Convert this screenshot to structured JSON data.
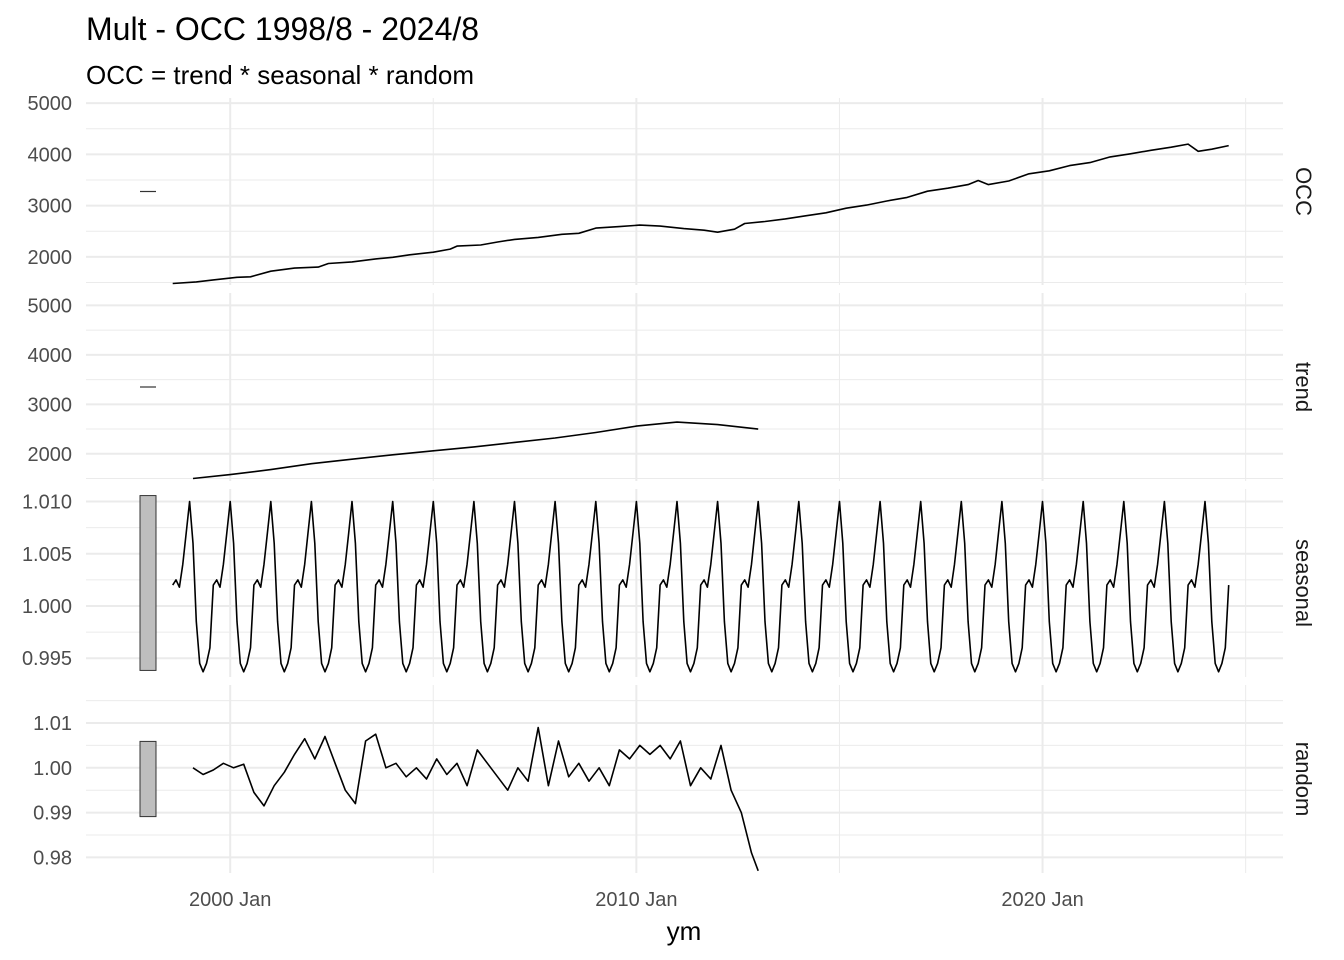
{
  "title": "Mult - OCC 1998/8 - 2024/8",
  "subtitle": "OCC = trend * seasonal * random",
  "colors": {
    "line": "#000000",
    "grid": "#ebebeb",
    "scale_bar": "#bebebe",
    "axis_text": "#4d4d4d",
    "title": "#000000"
  },
  "chart_data": {
    "type": "line",
    "title": "Mult - OCC 1998/8 - 2024/8",
    "subtitle": "OCC = trend * seasonal * random",
    "xlabel": "ym",
    "x_range": [
      "1998-08",
      "2024-08"
    ],
    "x_ticks": [
      "2000 Jan",
      "2010 Jan",
      "2020 Jan"
    ],
    "grid": true,
    "panels": [
      {
        "name": "OCC",
        "ylim": [
          1450,
          5100
        ],
        "y_ticks": [
          2000,
          3000,
          4000,
          5000
        ],
        "y_tick_labels": [
          "2000",
          "3000",
          "4000",
          "5000"
        ],
        "series": [
          {
            "x": "1998-08",
            "y": 1480
          },
          {
            "x": "1999-03",
            "y": 1510
          },
          {
            "x": "1999-08",
            "y": 1550
          },
          {
            "x": "2000-03",
            "y": 1600
          },
          {
            "x": "2000-07",
            "y": 1610
          },
          {
            "x": "2001-01",
            "y": 1720
          },
          {
            "x": "2001-08",
            "y": 1780
          },
          {
            "x": "2002-03",
            "y": 1800
          },
          {
            "x": "2002-06",
            "y": 1870
          },
          {
            "x": "2003-01",
            "y": 1900
          },
          {
            "x": "2003-08",
            "y": 1960
          },
          {
            "x": "2004-01",
            "y": 1990
          },
          {
            "x": "2004-06",
            "y": 2040
          },
          {
            "x": "2005-01",
            "y": 2090
          },
          {
            "x": "2005-06",
            "y": 2150
          },
          {
            "x": "2005-08",
            "y": 2210
          },
          {
            "x": "2006-03",
            "y": 2230
          },
          {
            "x": "2006-08",
            "y": 2290
          },
          {
            "x": "2007-01",
            "y": 2340
          },
          {
            "x": "2007-08",
            "y": 2380
          },
          {
            "x": "2008-03",
            "y": 2440
          },
          {
            "x": "2008-08",
            "y": 2460
          },
          {
            "x": "2009-01",
            "y": 2560
          },
          {
            "x": "2009-08",
            "y": 2590
          },
          {
            "x": "2010-02",
            "y": 2620
          },
          {
            "x": "2010-08",
            "y": 2600
          },
          {
            "x": "2011-03",
            "y": 2550
          },
          {
            "x": "2011-09",
            "y": 2520
          },
          {
            "x": "2012-01",
            "y": 2480
          },
          {
            "x": "2012-06",
            "y": 2540
          },
          {
            "x": "2012-09",
            "y": 2650
          },
          {
            "x": "2013-03",
            "y": 2690
          },
          {
            "x": "2013-09",
            "y": 2740
          },
          {
            "x": "2014-03",
            "y": 2800
          },
          {
            "x": "2014-09",
            "y": 2860
          },
          {
            "x": "2015-03",
            "y": 2950
          },
          {
            "x": "2015-09",
            "y": 3010
          },
          {
            "x": "2016-03",
            "y": 3090
          },
          {
            "x": "2016-09",
            "y": 3160
          },
          {
            "x": "2017-03",
            "y": 3280
          },
          {
            "x": "2017-09",
            "y": 3340
          },
          {
            "x": "2018-03",
            "y": 3410
          },
          {
            "x": "2018-06",
            "y": 3490
          },
          {
            "x": "2018-09",
            "y": 3410
          },
          {
            "x": "2019-03",
            "y": 3480
          },
          {
            "x": "2019-09",
            "y": 3620
          },
          {
            "x": "2020-03",
            "y": 3680
          },
          {
            "x": "2020-09",
            "y": 3780
          },
          {
            "x": "2021-03",
            "y": 3840
          },
          {
            "x": "2021-09",
            "y": 3950
          },
          {
            "x": "2022-03",
            "y": 4010
          },
          {
            "x": "2022-09",
            "y": 4080
          },
          {
            "x": "2023-03",
            "y": 4140
          },
          {
            "x": "2023-08",
            "y": 4200
          },
          {
            "x": "2023-11",
            "y": 4060
          },
          {
            "x": "2024-03",
            "y": 4100
          },
          {
            "x": "2024-08",
            "y": 4170
          }
        ]
      },
      {
        "name": "trend",
        "ylim": [
          1450,
          5250
        ],
        "y_ticks": [
          2000,
          3000,
          4000,
          5000
        ],
        "y_tick_labels": [
          "2000",
          "3000",
          "4000",
          "5000"
        ],
        "series": [
          {
            "x": "1999-02",
            "y": 1500
          },
          {
            "x": "2000-01",
            "y": 1580
          },
          {
            "x": "2001-01",
            "y": 1680
          },
          {
            "x": "2002-01",
            "y": 1800
          },
          {
            "x": "2003-01",
            "y": 1890
          },
          {
            "x": "2004-01",
            "y": 1980
          },
          {
            "x": "2005-01",
            "y": 2060
          },
          {
            "x": "2006-01",
            "y": 2140
          },
          {
            "x": "2007-01",
            "y": 2230
          },
          {
            "x": "2008-01",
            "y": 2320
          },
          {
            "x": "2009-01",
            "y": 2430
          },
          {
            "x": "2010-01",
            "y": 2560
          },
          {
            "x": "2011-01",
            "y": 2640
          },
          {
            "x": "2012-01",
            "y": 2590
          },
          {
            "x": "2013-01",
            "y": 2500
          }
        ]
      },
      {
        "name": "seasonal",
        "ylim": [
          0.9932,
          1.0112
        ],
        "y_ticks": [
          0.995,
          1.0,
          1.005,
          1.01
        ],
        "y_tick_labels": [
          "0.995",
          "1.000",
          "1.005",
          "1.010"
        ],
        "start": "1998-08",
        "end": "2024-08",
        "period_values_by_month": {
          "Jan": 1.01,
          "Feb": 1.006,
          "Mar": 0.9985,
          "Apr": 0.9945,
          "May": 0.9937,
          "Jun": 0.9945,
          "Jul": 0.996,
          "Aug": 1.002,
          "Sep": 1.0025,
          "Oct": 1.0018,
          "Nov": 1.004,
          "Dec": 1.007
        }
      },
      {
        "name": "random",
        "ylim": [
          0.9765,
          1.0185
        ],
        "y_ticks": [
          0.98,
          0.99,
          1.0,
          1.01
        ],
        "y_tick_labels": [
          "0.98",
          "0.99",
          "1.00",
          "1.01"
        ],
        "series": [
          {
            "x": "1999-02",
            "y": 1.0
          },
          {
            "x": "1999-05",
            "y": 0.9985
          },
          {
            "x": "1999-08",
            "y": 0.9995
          },
          {
            "x": "1999-11",
            "y": 1.001
          },
          {
            "x": "2000-02",
            "y": 1.0
          },
          {
            "x": "2000-05",
            "y": 1.0008
          },
          {
            "x": "2000-08",
            "y": 0.9945
          },
          {
            "x": "2000-11",
            "y": 0.9915
          },
          {
            "x": "2001-02",
            "y": 0.996
          },
          {
            "x": "2001-05",
            "y": 0.999
          },
          {
            "x": "2001-08",
            "y": 1.003
          },
          {
            "x": "2001-11",
            "y": 1.0065
          },
          {
            "x": "2002-02",
            "y": 1.002
          },
          {
            "x": "2002-05",
            "y": 1.007
          },
          {
            "x": "2002-08",
            "y": 1.001
          },
          {
            "x": "2002-11",
            "y": 0.995
          },
          {
            "x": "2003-02",
            "y": 0.992
          },
          {
            "x": "2003-05",
            "y": 1.006
          },
          {
            "x": "2003-08",
            "y": 1.0075
          },
          {
            "x": "2003-11",
            "y": 1.0
          },
          {
            "x": "2004-02",
            "y": 1.001
          },
          {
            "x": "2004-05",
            "y": 0.998
          },
          {
            "x": "2004-08",
            "y": 1.0
          },
          {
            "x": "2004-11",
            "y": 0.9975
          },
          {
            "x": "2005-02",
            "y": 1.002
          },
          {
            "x": "2005-05",
            "y": 0.9985
          },
          {
            "x": "2005-08",
            "y": 1.001
          },
          {
            "x": "2005-11",
            "y": 0.996
          },
          {
            "x": "2006-02",
            "y": 1.004
          },
          {
            "x": "2006-05",
            "y": 1.001
          },
          {
            "x": "2006-08",
            "y": 0.998
          },
          {
            "x": "2006-11",
            "y": 0.995
          },
          {
            "x": "2007-02",
            "y": 1.0
          },
          {
            "x": "2007-05",
            "y": 0.997
          },
          {
            "x": "2007-08",
            "y": 1.009
          },
          {
            "x": "2007-11",
            "y": 0.996
          },
          {
            "x": "2008-02",
            "y": 1.006
          },
          {
            "x": "2008-05",
            "y": 0.998
          },
          {
            "x": "2008-08",
            "y": 1.001
          },
          {
            "x": "2008-11",
            "y": 0.997
          },
          {
            "x": "2009-02",
            "y": 1.0
          },
          {
            "x": "2009-05",
            "y": 0.996
          },
          {
            "x": "2009-08",
            "y": 1.004
          },
          {
            "x": "2009-11",
            "y": 1.002
          },
          {
            "x": "2010-02",
            "y": 1.005
          },
          {
            "x": "2010-05",
            "y": 1.003
          },
          {
            "x": "2010-08",
            "y": 1.005
          },
          {
            "x": "2010-11",
            "y": 1.002
          },
          {
            "x": "2011-02",
            "y": 1.006
          },
          {
            "x": "2011-05",
            "y": 0.996
          },
          {
            "x": "2011-08",
            "y": 1.0
          },
          {
            "x": "2011-11",
            "y": 0.9975
          },
          {
            "x": "2012-02",
            "y": 1.005
          },
          {
            "x": "2012-05",
            "y": 0.995
          },
          {
            "x": "2012-08",
            "y": 0.99
          },
          {
            "x": "2012-11",
            "y": 0.981
          },
          {
            "x": "2013-01",
            "y": 0.977
          }
        ]
      }
    ]
  }
}
